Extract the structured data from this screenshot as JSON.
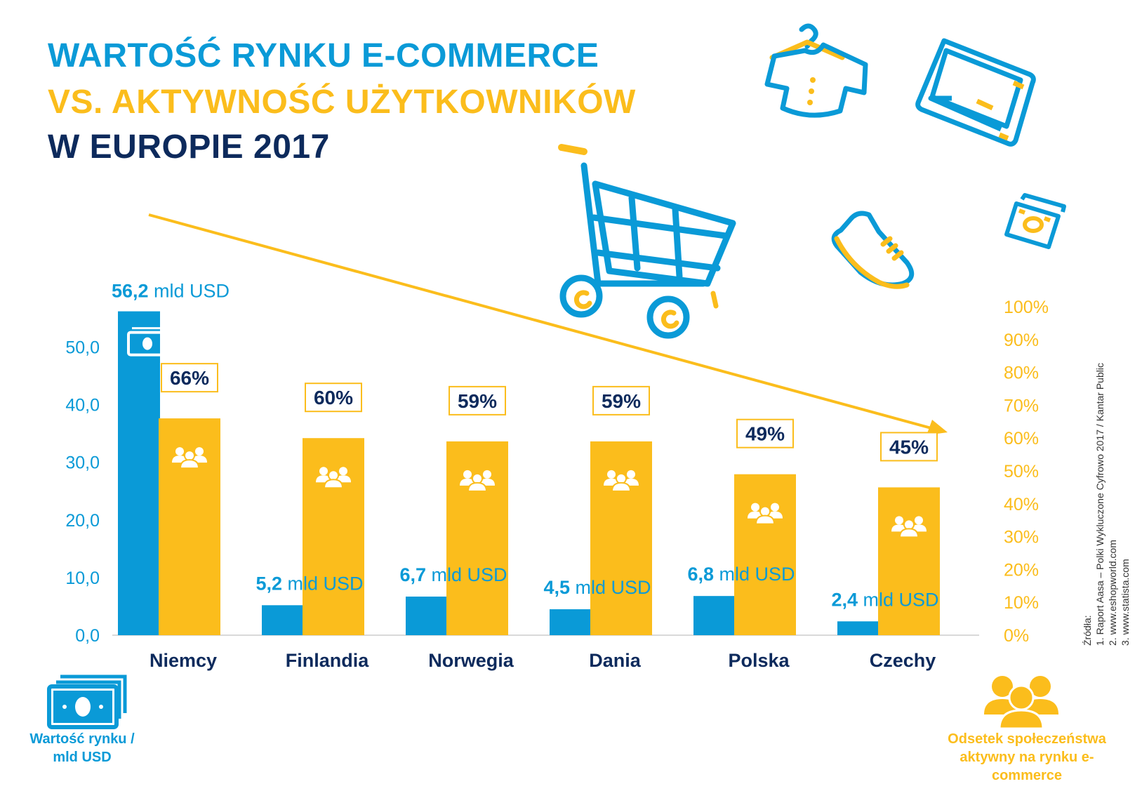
{
  "title": {
    "line1": "WARTOŚĆ RYNKU E-COMMERCE",
    "line2": "VS. AKTYWNOŚĆ UŻYTKOWNIKÓW",
    "line3": "W EUROPIE 2017"
  },
  "colors": {
    "blue": "#0a9ad7",
    "yellow": "#fbbd1c",
    "navy": "#0d2a5c"
  },
  "icons": [
    "shopping-cart-icon",
    "tshirt-hanger-icon",
    "laptop-icon",
    "sneaker-icon",
    "cash-icon",
    "people-group-icon"
  ],
  "chart_data": {
    "type": "bar",
    "categories": [
      "Niemcy",
      "Finlandia",
      "Norwegia",
      "Dania",
      "Polska",
      "Czechy"
    ],
    "series": [
      {
        "name": "Wartość rynku / mld USD",
        "axis": "left",
        "color": "#0a9ad7",
        "values": [
          56.2,
          5.2,
          6.7,
          4.5,
          6.8,
          2.4
        ],
        "labels": [
          "56,2",
          "5,2",
          "6,7",
          "4,5",
          "6,8",
          "2,4"
        ],
        "unit": "mld USD"
      },
      {
        "name": "Odsetek społeczeństwa aktywny na rynku e-commerce",
        "axis": "right",
        "color": "#fbbd1c",
        "values": [
          66,
          60,
          59,
          59,
          49,
          45
        ],
        "labels": [
          "66%",
          "60%",
          "59%",
          "59%",
          "49%",
          "45%"
        ]
      }
    ],
    "y_left": {
      "range": [
        0,
        57
      ],
      "ticks": [
        "0,0",
        "10,0",
        "20,0",
        "30,0",
        "40,0",
        "50,0"
      ],
      "tick_values": [
        0,
        10,
        20,
        30,
        40,
        50
      ]
    },
    "y_right": {
      "range": [
        0,
        100
      ],
      "ticks": [
        "0%",
        "10%",
        "20%",
        "30%",
        "40%",
        "50%",
        "60%",
        "70%",
        "80%",
        "90%",
        "100%"
      ],
      "tick_values": [
        0,
        10,
        20,
        30,
        40,
        50,
        60,
        70,
        80,
        90,
        100
      ]
    },
    "grid": false,
    "trend_arrow": "downward"
  },
  "legend": {
    "left_label": "Wartość rynku / mld USD",
    "right_label": "Odsetek społeczeństwa aktywny na rynku e-commerce"
  },
  "sources": {
    "heading": "Źródła:",
    "items": [
      "1. Raport Aasa – Polki Wykluczone Cyfrowo 2017 / Kantar Public",
      "2. www.eshopworld.com",
      "3. www.statista.com"
    ]
  }
}
